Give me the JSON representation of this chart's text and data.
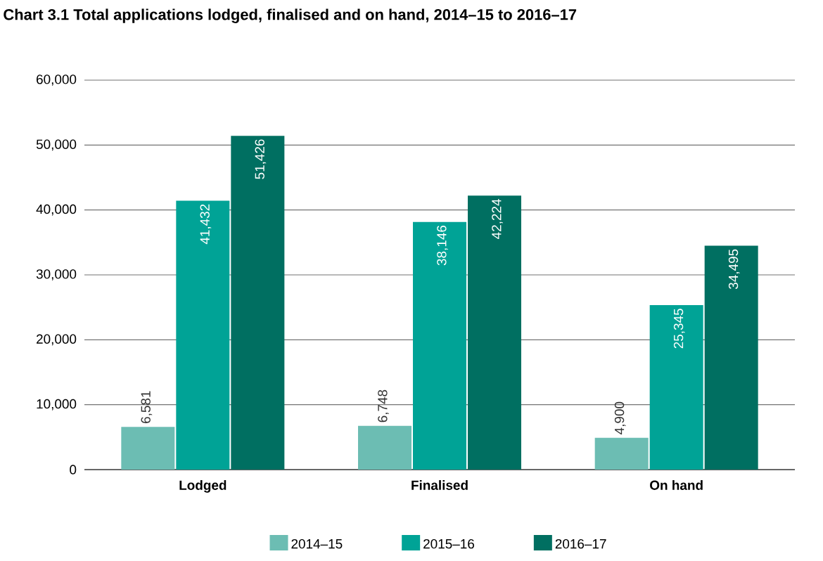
{
  "chart_data": {
    "type": "bar",
    "title": "Chart 3.1 Total applications lodged, finalised and on hand, 2014–15 to 2016–17",
    "categories": [
      "Lodged",
      "Finalised",
      "On hand"
    ],
    "series": [
      {
        "name": "2014–15",
        "color": "#6cbdb3",
        "values": [
          6581,
          6748,
          4900
        ],
        "value_labels": [
          "6,581",
          "6,748",
          "4,900"
        ]
      },
      {
        "name": "2015–16",
        "color": "#00a396",
        "values": [
          41432,
          38146,
          25345
        ],
        "value_labels": [
          "41,432",
          "38,146",
          "25,345"
        ]
      },
      {
        "name": "2016–17",
        "color": "#006f61",
        "values": [
          51426,
          42224,
          34495
        ],
        "value_labels": [
          "51,426",
          "42,224",
          "34,495"
        ]
      }
    ],
    "ylim": [
      0,
      60000
    ],
    "yticks": [
      0,
      {
        "value": 10000,
        "label": "10,000"
      },
      {
        "value": 20000,
        "label": "20,000"
      },
      {
        "value": 30000,
        "label": "30,000"
      },
      {
        "value": 40000,
        "label": "40,000"
      },
      {
        "value": 50000,
        "label": "50,000"
      },
      {
        "value": 60000,
        "label": "60,000"
      }
    ],
    "grid": "y",
    "legend": "bottom"
  }
}
